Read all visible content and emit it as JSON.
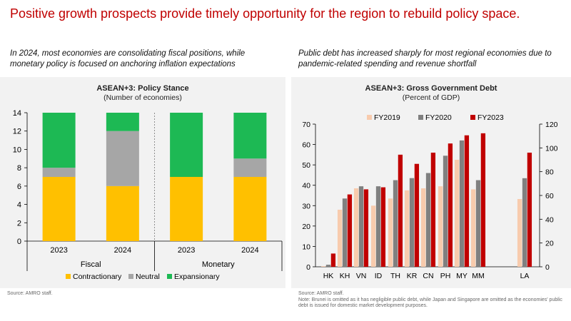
{
  "headline": "Positive growth prospects provide timely opportunity for the region to rebuild policy space.",
  "left_subtitle": "In 2024, most economies are consolidating fiscal positions, while monetary policy is focused on anchoring inflation expectations",
  "right_subtitle": "Public debt has increased sharply for most regional economies due to pandemic-related spending and revenue shortfall",
  "left_source": "Source: AMRO staff.",
  "right_source": "Source: AMRO staff.",
  "right_note": "Note: Brunei is omitted as it has negligible public debt, while Japan and Singapore are omitted as the economies' public debt is issued for domestic market development purposes.",
  "colors": {
    "contractionary": "#ffc000",
    "neutral": "#a6a6a6",
    "expansionary": "#1db954",
    "fy2019": "#f8cbad",
    "fy2020": "#808080",
    "fy2023": "#c00000",
    "headline": "#c00000"
  },
  "chart_data": [
    {
      "type": "bar",
      "stacked": true,
      "title": "ASEAN+3: Policy Stance",
      "subtitle": "(Number of economies)",
      "categories": [
        "2023",
        "2024",
        "2023",
        "2024"
      ],
      "groups": [
        {
          "name": "Fiscal",
          "categories": [
            0,
            1
          ]
        },
        {
          "name": "Monetary",
          "categories": [
            2,
            3
          ]
        }
      ],
      "series": [
        {
          "name": "Contractionary",
          "values": [
            7,
            6,
            7,
            7
          ]
        },
        {
          "name": "Neutral",
          "values": [
            1,
            6,
            0,
            2
          ]
        },
        {
          "name": "Expansionary",
          "values": [
            6,
            2,
            7,
            5
          ]
        }
      ],
      "ylim": [
        0,
        14
      ],
      "yticks": [
        0,
        2,
        4,
        6,
        8,
        10,
        12,
        14
      ],
      "legend": "bottom",
      "grid": false
    },
    {
      "type": "bar",
      "title": "ASEAN+3: Gross Government Debt",
      "subtitle": "(Percent of GDP)",
      "categories": [
        "HK",
        "KH",
        "VN",
        "ID",
        "TH",
        "KR",
        "CN",
        "PH",
        "MY",
        "MM",
        "LA"
      ],
      "series": [
        {
          "name": "FY2019",
          "values": [
            0.3,
            28,
            38.5,
            30,
            33.5,
            37.5,
            38.5,
            39.5,
            52.5,
            38,
            57
          ]
        },
        {
          "name": "FY2020",
          "values": [
            1,
            33.5,
            39.5,
            39.5,
            42.5,
            43.5,
            46,
            54.5,
            62,
            42.5,
            74.5
          ]
        },
        {
          "name": "FY2023",
          "values": [
            6.5,
            35.5,
            38,
            39,
            55,
            50.5,
            56,
            60.5,
            64.5,
            65.5,
            96
          ]
        }
      ],
      "axis_assignment": {
        "left": [
          "HK",
          "KH",
          "VN",
          "ID",
          "TH",
          "KR",
          "CN",
          "PH",
          "MY",
          "MM"
        ],
        "right": [
          "LA"
        ]
      },
      "ylim_left": [
        0,
        70
      ],
      "yticks_left": [
        0,
        10,
        20,
        30,
        40,
        50,
        60,
        70
      ],
      "ylim_right": [
        0,
        120
      ],
      "yticks_right": [
        0,
        20,
        40,
        60,
        80,
        100,
        120
      ],
      "legend": "top",
      "grid": false
    }
  ]
}
